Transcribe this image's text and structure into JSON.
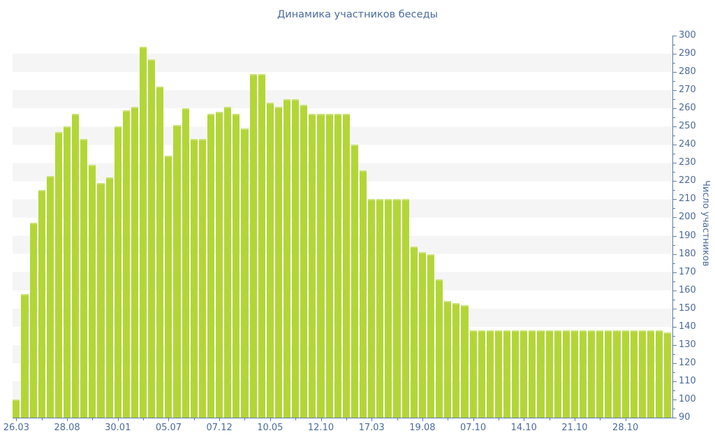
{
  "title": "Динамика участников беседы",
  "chart_data": {
    "type": "bar",
    "title": "Динамика участников беседы",
    "xlabel": "",
    "ylabel": "Число участников",
    "ylim": [
      90,
      300
    ],
    "y_tick_step": 10,
    "y_minor_tick_step": 5,
    "grid": "alternating horizontal gray/white bands of 10 units",
    "legend": "none",
    "x_tick_labels": [
      "26.03",
      "28.08",
      "30.01",
      "05.07",
      "07.12",
      "10.05",
      "12.10",
      "17.03",
      "19.08",
      "07.10",
      "14.10",
      "21.10",
      "28.10"
    ],
    "x_tick_every_n_bars": 6,
    "values": [
      100,
      158,
      197,
      215,
      223,
      247,
      250,
      257,
      243,
      229,
      219,
      222,
      250,
      259,
      261,
      294,
      287,
      272,
      234,
      251,
      260,
      243,
      243,
      257,
      258,
      261,
      257,
      249,
      279,
      279,
      263,
      261,
      265,
      265,
      262,
      257,
      257,
      257,
      257,
      257,
      240,
      226,
      210,
      210,
      210,
      210,
      210,
      184,
      181,
      180,
      166,
      154,
      153,
      152,
      138,
      138,
      138,
      138,
      138,
      138,
      138,
      138,
      138,
      138,
      138,
      138,
      138,
      138,
      138,
      138,
      138,
      138,
      138,
      138,
      138,
      138,
      138,
      137
    ]
  },
  "colors": {
    "bar": "#b3d637",
    "bar_top_highlight": "#c9e371",
    "axis": "#5b7aa6",
    "label_text": "#4a6b9c",
    "stripe_gray": "#f5f5f6",
    "background": "#ffffff"
  }
}
